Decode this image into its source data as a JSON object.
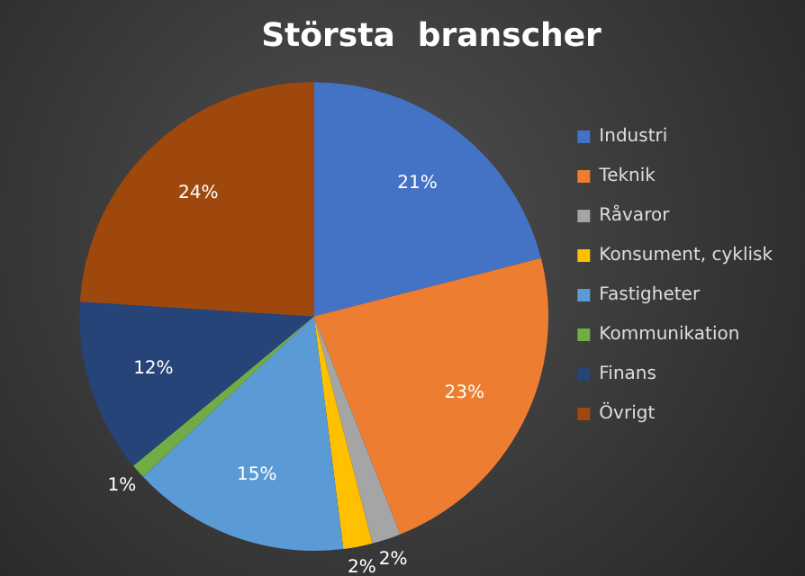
{
  "chart_data": {
    "type": "pie",
    "title": "Största  branscher",
    "categories": [
      "Industri",
      "Teknik",
      "Råvaror",
      "Konsument, cyklisk",
      "Fastigheter",
      "Kommunikation",
      "Finans",
      "Övrigt"
    ],
    "values": [
      21,
      23,
      2,
      2,
      15,
      1,
      12,
      24
    ],
    "value_labels": [
      "21%",
      "23%",
      "2%",
      "2%",
      "15%",
      "1%",
      "12%",
      "24%"
    ],
    "colors": [
      "#4472c4",
      "#ed7d31",
      "#a5a5a5",
      "#ffc000",
      "#5b9bd5",
      "#70ad47",
      "#264478",
      "#9e480e"
    ],
    "legend": "right"
  }
}
